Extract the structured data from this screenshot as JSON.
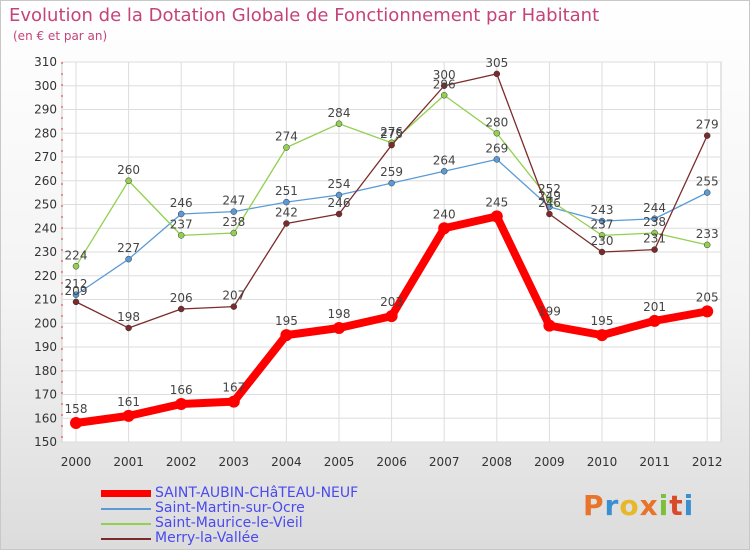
{
  "title": "Evolution de la Dotation Globale de Fonctionnement par Habitant",
  "subtitle": "(en € et par an)",
  "logo": {
    "text": "Proxiti",
    "colors": [
      "#e8732b",
      "#3a8fd0",
      "#e8b82b",
      "#e8732b",
      "#7cbf3a",
      "#d94a2b",
      "#3a8fd0"
    ]
  },
  "chart_data": {
    "type": "line",
    "title": "Evolution de la Dotation Globale de Fonctionnement par Habitant",
    "subtitle": "(en € et par an)",
    "x": [
      "2000",
      "2001",
      "2002",
      "2003",
      "2004",
      "2005",
      "2006",
      "2007",
      "2008",
      "2009",
      "2010",
      "2011",
      "2012"
    ],
    "ylim": [
      150,
      310
    ],
    "yticks": [
      150,
      160,
      170,
      180,
      190,
      200,
      210,
      220,
      230,
      240,
      250,
      260,
      270,
      280,
      290,
      300,
      310
    ],
    "grid": true,
    "legend_position": "bottom-left",
    "series": [
      {
        "name": "SAINT-AUBIN-CHâTEAU-NEUF",
        "color": "#ff0000",
        "width": 8,
        "marker": 6,
        "values": [
          158,
          161,
          166,
          167,
          195,
          198,
          203,
          240,
          245,
          199,
          195,
          201,
          205
        ]
      },
      {
        "name": "Saint-Martin-sur-Ocre",
        "color": "#5b9bd5",
        "width": 1.3,
        "marker": 3,
        "values": [
          212,
          227,
          246,
          247,
          251,
          254,
          259,
          264,
          269,
          249,
          243,
          244,
          255
        ]
      },
      {
        "name": "Saint-Maurice-le-Vieil",
        "color": "#92d050",
        "width": 1.3,
        "marker": 3,
        "values": [
          224,
          260,
          237,
          238,
          274,
          284,
          276,
          296,
          280,
          252,
          237,
          238,
          233
        ]
      },
      {
        "name": "Merry-la-Vallée",
        "color": "#7b2b2b",
        "width": 1.3,
        "marker": 3,
        "values": [
          209,
          198,
          206,
          207,
          242,
          246,
          275,
          300,
          305,
          246,
          230,
          231,
          279
        ]
      }
    ]
  }
}
